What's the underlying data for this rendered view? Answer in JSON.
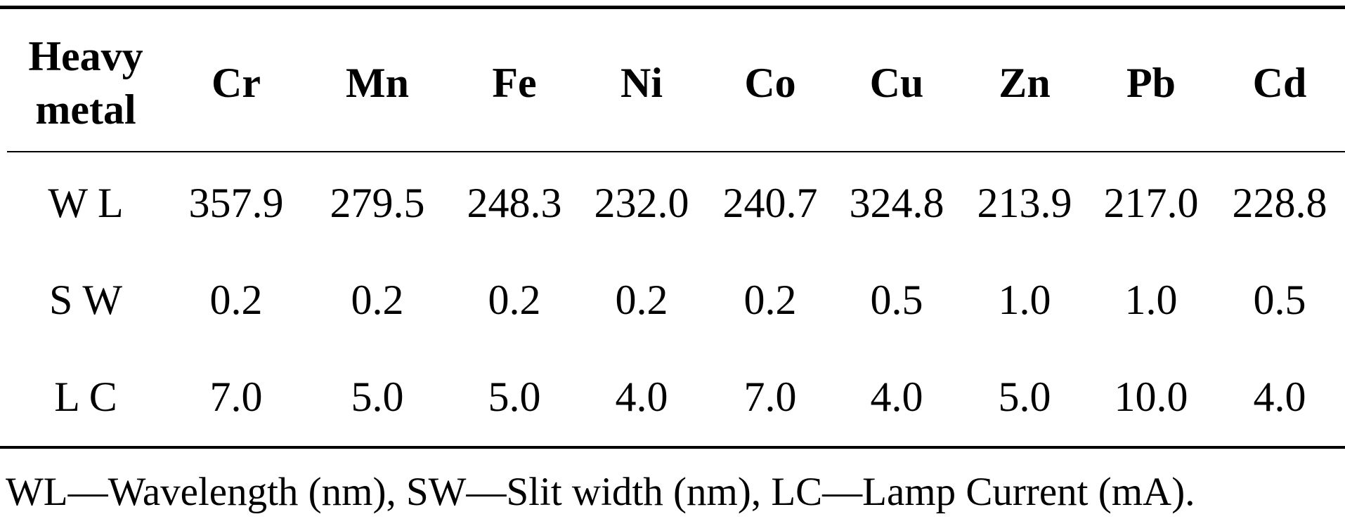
{
  "table": {
    "header": [
      "Heavy metal",
      "Cr",
      "Mn",
      "Fe",
      "Ni",
      "Co",
      "Cu",
      "Zn",
      "Pb",
      "Cd"
    ],
    "rows": [
      [
        "W L",
        "357.9",
        "279.5",
        "248.3",
        "232.0",
        "240.7",
        "324.8",
        "213.9",
        "217.0",
        "228.8"
      ],
      [
        "S W",
        "0.2",
        "0.2",
        "0.2",
        "0.2",
        "0.2",
        "0.5",
        "1.0",
        "1.0",
        "0.5"
      ],
      [
        "L C",
        "7.0",
        "5.0",
        "5.0",
        "4.0",
        "7.0",
        "4.0",
        "5.0",
        "10.0",
        "4.0"
      ]
    ],
    "footnote": "WL—Wavelength (nm), SW—Slit width (nm), LC—Lamp Current (mA)."
  }
}
